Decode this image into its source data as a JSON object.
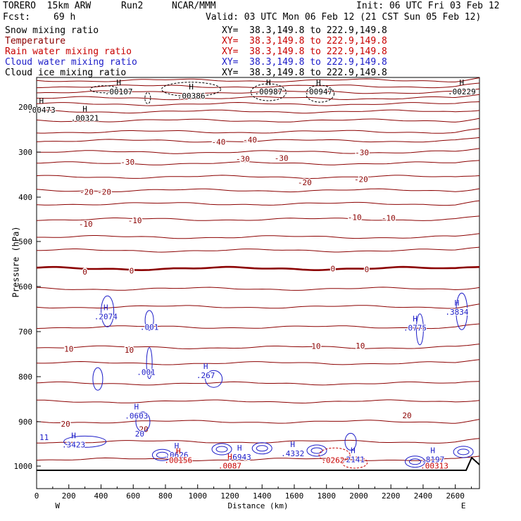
{
  "header": {
    "model": "TORERO  15km ARW",
    "run": "Run2",
    "org": "NCAR/MMM",
    "init": "Init: 06 UTC Fri 03 Feb 12",
    "fcst_label": "Fcst:",
    "fcst_value": "69 h",
    "valid": "Valid: 03 UTC Mon 06 Feb 12 (21 CST Sun 05 Feb 12)"
  },
  "fields": [
    {
      "name": "Snow mixing ratio",
      "xy": "XY=  38.3,149.8 to 222.9,149.8",
      "color": "#000000"
    },
    {
      "name": "Temperature",
      "xy": "XY=  38.3,149.8 to 222.9,149.8",
      "color": "#8b0000"
    },
    {
      "name": "Rain water mixing ratio",
      "xy": "XY=  38.3,149.8 to 222.9,149.8",
      "color": "#c80000"
    },
    {
      "name": "Cloud water mixing ratio",
      "xy": "XY=  38.3,149.8 to 222.9,149.8",
      "color": "#1c1cc8"
    },
    {
      "name": "Cloud ice mixing ratio",
      "xy": "XY=  38.3,149.8 to 222.9,149.8",
      "color": "#000000"
    }
  ],
  "chart_data": {
    "type": "line",
    "subtype": "vertical cross-section contour plot",
    "xlabel": "Distance (km)",
    "ylabel": "Pressure (hPa)",
    "xlim": [
      0,
      2750
    ],
    "ylim": [
      1050,
      100
    ],
    "x_ticks": [
      0,
      200,
      400,
      600,
      800,
      1000,
      1200,
      1400,
      1600,
      1800,
      2000,
      2200,
      2400,
      2600
    ],
    "y_ticks": [
      200,
      300,
      400,
      500,
      600,
      700,
      800,
      900,
      1000
    ],
    "left_end_label": "W",
    "right_end_label": "E",
    "temperature_contour_labels": [
      {
        "value": "-40",
        "x": 1130,
        "p": 277
      },
      {
        "value": "-40",
        "x": 1325,
        "p": 273
      },
      {
        "value": "-30",
        "x": 565,
        "p": 322
      },
      {
        "value": "-30",
        "x": 1280,
        "p": 315
      },
      {
        "value": "-30",
        "x": 1520,
        "p": 313
      },
      {
        "value": "-30",
        "x": 2020,
        "p": 301
      },
      {
        "value": "-20",
        "x": 310,
        "p": 388
      },
      {
        "value": "-20",
        "x": 420,
        "p": 388
      },
      {
        "value": "-20",
        "x": 1665,
        "p": 367
      },
      {
        "value": "-20",
        "x": 2015,
        "p": 360
      },
      {
        "value": "-10",
        "x": 305,
        "p": 460
      },
      {
        "value": "-10",
        "x": 610,
        "p": 452
      },
      {
        "value": "-10",
        "x": 1975,
        "p": 445
      },
      {
        "value": "-10",
        "x": 2185,
        "p": 447
      },
      {
        "value": "0",
        "x": 300,
        "p": 567
      },
      {
        "value": "0",
        "x": 590,
        "p": 565
      },
      {
        "value": "0",
        "x": 1840,
        "p": 560
      },
      {
        "value": "0",
        "x": 2050,
        "p": 562
      },
      {
        "value": "10",
        "x": 200,
        "p": 738
      },
      {
        "value": "10",
        "x": 575,
        "p": 741
      },
      {
        "value": "10",
        "x": 1735,
        "p": 732
      },
      {
        "value": "10",
        "x": 2010,
        "p": 731
      },
      {
        "value": "20",
        "x": 180,
        "p": 905
      },
      {
        "value": "20",
        "x": 665,
        "p": 917
      },
      {
        "value": "20",
        "x": 2300,
        "p": 886
      }
    ],
    "temperature_isotherm_pressures": [
      110,
      130,
      150,
      170,
      190,
      210,
      230,
      255,
      275,
      300,
      325,
      355,
      385,
      415,
      450,
      490,
      520,
      560,
      605,
      645,
      690,
      735,
      770,
      815,
      855,
      900,
      945,
      985
    ],
    "freezing_level_hPa": 565,
    "cloud_ice_maxima": [
      {
        "label": "H",
        "value": ".00107",
        "x": 510,
        "p": 145
      },
      {
        "label": "H",
        "value": ".00386",
        "x": 960,
        "p": 160
      },
      {
        "label": "H",
        "value": ".00987",
        "x": 1440,
        "p": 145
      },
      {
        "label": "H",
        "value": ".00947",
        "x": 1750,
        "p": 145
      },
      {
        "label": "H",
        "value": ".00229",
        "x": 2640,
        "p": 145
      },
      {
        "label": "H",
        "value": ".00473",
        "x": 30,
        "p": 205
      },
      {
        "label": "H",
        "value": ".00321",
        "x": 300,
        "p": 223
      }
    ],
    "cloud_water_maxima": [
      {
        "label": "H",
        "value": ".2074",
        "x": 430,
        "p": 665
      },
      {
        "label": "",
        "value": ".001",
        "x": 700,
        "p": 688
      },
      {
        "label": "H",
        "value": ".0775",
        "x": 2350,
        "p": 690
      },
      {
        "label": "H",
        "value": ".3834",
        "x": 2610,
        "p": 655
      },
      {
        "label": "",
        "value": ".001",
        "x": 680,
        "p": 788
      },
      {
        "label": "H",
        "value": ".267",
        "x": 1050,
        "p": 795
      },
      {
        "label": "H",
        "value": ".0603",
        "x": 620,
        "p": 885
      },
      {
        "label": "H",
        "value": ".3423",
        "x": 230,
        "p": 950
      },
      {
        "label": "H",
        "value": ".0626",
        "x": 870,
        "p": 973
      },
      {
        "label": "H",
        "value": ".6943",
        "x": 1260,
        "p": 978
      },
      {
        "label": "H",
        "value": ".4332",
        "x": 1590,
        "p": 970
      },
      {
        "label": "H",
        "value": ".2141",
        "x": 1965,
        "p": 983
      },
      {
        "label": "H",
        "value": ".8197",
        "x": 2460,
        "p": 983
      },
      {
        "label": "",
        "value": "20",
        "x": 640,
        "p": 925
      }
    ],
    "rain_maxima": [
      {
        "label": "H",
        "value": ".00156",
        "x": 880,
        "p": 985
      },
      {
        "label": "H",
        "value": ".0087",
        "x": 1200,
        "p": 998
      },
      {
        "label": "",
        "value": ".0262",
        "x": 1840,
        "p": 985
      },
      {
        "label": "",
        "value": ".00313",
        "x": 2470,
        "p": 998
      }
    ],
    "side_label": "11"
  }
}
